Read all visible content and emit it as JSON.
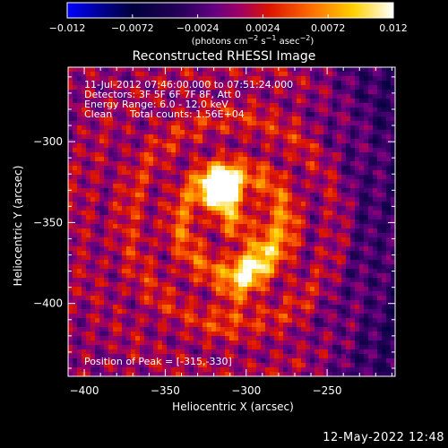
{
  "chart_data": {
    "type": "heatmap",
    "title": "Reconstructed RHESSI Image",
    "colorbar": {
      "colormap": "hot (blue-black-purple-red-yellow-white)",
      "range": [
        -0.012,
        0.012
      ],
      "tick_labels": [
        "-0.012",
        "-0.0072",
        "-0.0024",
        "0.0024",
        "0.0072",
        "0.012"
      ],
      "label_parts": [
        "(photons cm",
        "-2",
        " s",
        "-1",
        " asec",
        "-2",
        ")"
      ]
    },
    "xlabel": "Heliocentric X (arcsec)",
    "ylabel": "Heliocentric Y (arcsec)",
    "xlim": [
      -410,
      -208
    ],
    "ylim": [
      -445,
      -254
    ],
    "x_ticks": [
      -400,
      -350,
      -300,
      -250
    ],
    "y_ticks": [
      -300,
      -350,
      -400
    ],
    "info": {
      "time_range": "11-Jul-2012 07:46:00.000 to 07:51:24.000",
      "detectors": "Detectors: 3F 5F 6F 7F 8F, Att 0",
      "energy_range": "Energy Range: 6.0 - 12.0 keV",
      "method": "Clean",
      "total_counts": "Total counts: 1.56E+04"
    },
    "peak_label": "Position of Peak = [-315,-330]",
    "sources": [
      {
        "x": -315,
        "y": -330
      },
      {
        "x": -297,
        "y": -377
      }
    ]
  },
  "footer": {
    "date": "12-May-2022 12:48"
  }
}
